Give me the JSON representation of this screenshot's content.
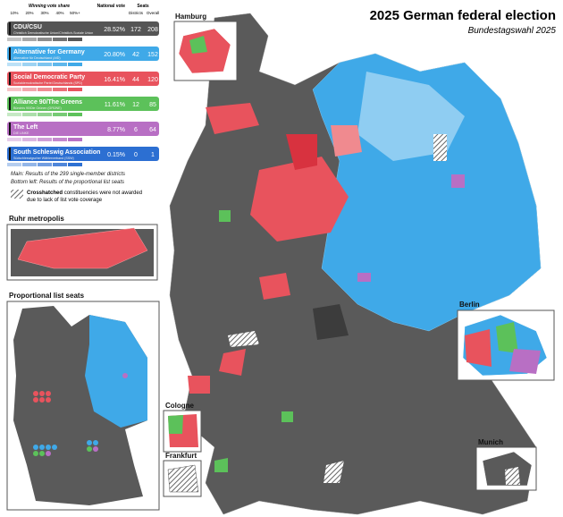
{
  "header": {
    "title": "2025 German federal election",
    "subtitle": "Bundestagswahl 2025"
  },
  "legend": {
    "share_title": "Winning vote share",
    "share_ticks": [
      "10%",
      "20%",
      "30%",
      "40%",
      "50%+"
    ],
    "national_vote": "National vote",
    "seats": "Seats",
    "districts": "Districts",
    "overall": "Overall",
    "parties": [
      {
        "name": "CDU/CSU",
        "full_name": "Christlich Demokratische Union/Christlich-Soziale Union",
        "share": "28.52%",
        "districts": 172,
        "overall": 208,
        "color": "#555555"
      },
      {
        "name": "Alternative for Germany",
        "full_name": "Alternative für Deutschland (AfD)",
        "share": "20.80%",
        "districts": 42,
        "overall": 152,
        "color": "#3fa9e8"
      },
      {
        "name": "Social Democratic Party",
        "full_name": "Sozialdemokratische Partei Deutschlands (SPD)",
        "share": "16.41%",
        "districts": 44,
        "overall": 120,
        "color": "#e8535d"
      },
      {
        "name": "Alliance 90/The Greens",
        "full_name": "Bündnis 90/Die Grünen (GRÜNE)",
        "share": "11.61%",
        "districts": 12,
        "overall": 85,
        "color": "#5cc15a"
      },
      {
        "name": "The Left",
        "full_name": "DIE LINKE",
        "share": "8.77%",
        "districts": 6,
        "overall": 64,
        "color": "#b86fc4"
      },
      {
        "name": "South Schleswig Association",
        "full_name": "Südschleswigscher Wählerverband (SSW)",
        "share": "0.15%",
        "districts": 0,
        "overall": 1,
        "color": "#2c6fd2"
      }
    ]
  },
  "notes": {
    "main": "Main: Results of the 299 single-member districts",
    "bottom_left": "Bottom left: Results of the proportional list seats",
    "hatch_bold": "Crosshatched",
    "hatch_text": "constituencies were not awarded",
    "hatch_text2": "due to lack of list vote coverage"
  },
  "insets": {
    "hamburg": "Hamburg",
    "ruhr": "Ruhr metropolis",
    "list": "Proportional list seats",
    "berlin": "Berlin",
    "cologne": "Cologne",
    "frankfurt": "Frankfurt",
    "munich": "Munich"
  }
}
